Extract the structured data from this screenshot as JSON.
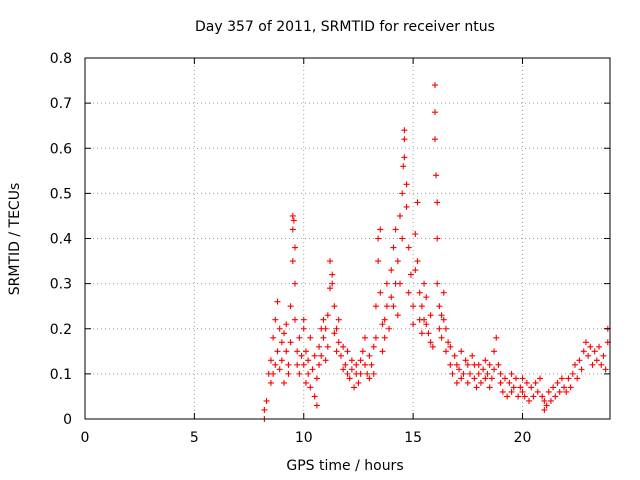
{
  "chart_data": {
    "type": "scatter",
    "title": "Day 357 of 2011, SRMTID for receiver ntus",
    "xlabel": "GPS time / hours",
    "ylabel": "SRMTID / TECUs",
    "xlim": [
      0,
      24
    ],
    "ylim": [
      0,
      0.8
    ],
    "x_ticks": [
      0,
      5,
      10,
      15,
      20
    ],
    "x_tick_labels": [
      "0",
      "5",
      "10",
      "15",
      "20"
    ],
    "y_ticks": [
      0,
      0.1,
      0.2,
      0.3,
      0.4,
      0.5,
      0.6,
      0.7,
      0.8
    ],
    "y_tick_labels": [
      "0",
      "0.1",
      "0.2",
      "0.3",
      "0.4",
      "0.5",
      "0.6",
      "0.7",
      "0.8"
    ],
    "grid": true,
    "marker": "+",
    "color": "#ff0000",
    "series": [
      {
        "name": "SRMTID",
        "points": [
          [
            8.2,
            0.0
          ],
          [
            8.2,
            0.02
          ],
          [
            8.3,
            0.04
          ],
          [
            8.4,
            0.1
          ],
          [
            8.5,
            0.08
          ],
          [
            8.5,
            0.13
          ],
          [
            8.6,
            0.1
          ],
          [
            8.6,
            0.18
          ],
          [
            8.7,
            0.12
          ],
          [
            8.7,
            0.22
          ],
          [
            8.8,
            0.26
          ],
          [
            8.8,
            0.15
          ],
          [
            8.9,
            0.2
          ],
          [
            8.9,
            0.11
          ],
          [
            9.0,
            0.17
          ],
          [
            9.0,
            0.13
          ],
          [
            9.1,
            0.19
          ],
          [
            9.1,
            0.08
          ],
          [
            9.2,
            0.15
          ],
          [
            9.2,
            0.21
          ],
          [
            9.3,
            0.12
          ],
          [
            9.3,
            0.1
          ],
          [
            9.4,
            0.17
          ],
          [
            9.4,
            0.25
          ],
          [
            9.5,
            0.35
          ],
          [
            9.5,
            0.42
          ],
          [
            9.5,
            0.45
          ],
          [
            9.55,
            0.44
          ],
          [
            9.6,
            0.38
          ],
          [
            9.6,
            0.3
          ],
          [
            9.6,
            0.22
          ],
          [
            9.7,
            0.15
          ],
          [
            9.7,
            0.12
          ],
          [
            9.8,
            0.18
          ],
          [
            9.8,
            0.1
          ],
          [
            9.9,
            0.14
          ],
          [
            10.0,
            0.2
          ],
          [
            10.0,
            0.22
          ],
          [
            10.0,
            0.12
          ],
          [
            10.1,
            0.15
          ],
          [
            10.1,
            0.08
          ],
          [
            10.2,
            0.13
          ],
          [
            10.2,
            0.1
          ],
          [
            10.3,
            0.18
          ],
          [
            10.3,
            0.07
          ],
          [
            10.4,
            0.11
          ],
          [
            10.5,
            0.05
          ],
          [
            10.5,
            0.14
          ],
          [
            10.6,
            0.03
          ],
          [
            10.6,
            0.09
          ],
          [
            10.7,
            0.16
          ],
          [
            10.7,
            0.12
          ],
          [
            10.8,
            0.2
          ],
          [
            10.8,
            0.14
          ],
          [
            10.9,
            0.22
          ],
          [
            10.9,
            0.18
          ],
          [
            11.0,
            0.2
          ],
          [
            11.0,
            0.13
          ],
          [
            11.1,
            0.23
          ],
          [
            11.1,
            0.16
          ],
          [
            11.2,
            0.29
          ],
          [
            11.2,
            0.35
          ],
          [
            11.3,
            0.32
          ],
          [
            11.3,
            0.3
          ],
          [
            11.4,
            0.25
          ],
          [
            11.4,
            0.19
          ],
          [
            11.5,
            0.2
          ],
          [
            11.5,
            0.15
          ],
          [
            11.6,
            0.22
          ],
          [
            11.6,
            0.17
          ],
          [
            11.7,
            0.14
          ],
          [
            11.8,
            0.11
          ],
          [
            11.8,
            0.16
          ],
          [
            11.9,
            0.12
          ],
          [
            12.0,
            0.1
          ],
          [
            12.0,
            0.15
          ],
          [
            12.1,
            0.09
          ],
          [
            12.2,
            0.13
          ],
          [
            12.2,
            0.11
          ],
          [
            12.3,
            0.07
          ],
          [
            12.4,
            0.1
          ],
          [
            12.4,
            0.12
          ],
          [
            12.5,
            0.08
          ],
          [
            12.6,
            0.13
          ],
          [
            12.6,
            0.1
          ],
          [
            12.7,
            0.15
          ],
          [
            12.8,
            0.12
          ],
          [
            12.8,
            0.18
          ],
          [
            12.9,
            0.1
          ],
          [
            13.0,
            0.14
          ],
          [
            13.0,
            0.09
          ],
          [
            13.1,
            0.12
          ],
          [
            13.2,
            0.1
          ],
          [
            13.2,
            0.16
          ],
          [
            13.3,
            0.18
          ],
          [
            13.3,
            0.25
          ],
          [
            13.4,
            0.35
          ],
          [
            13.4,
            0.4
          ],
          [
            13.5,
            0.42
          ],
          [
            13.5,
            0.28
          ],
          [
            13.6,
            0.21
          ],
          [
            13.6,
            0.15
          ],
          [
            13.7,
            0.18
          ],
          [
            13.7,
            0.22
          ],
          [
            13.8,
            0.25
          ],
          [
            13.8,
            0.3
          ],
          [
            13.9,
            0.2
          ],
          [
            14.0,
            0.27
          ],
          [
            14.0,
            0.33
          ],
          [
            14.1,
            0.38
          ],
          [
            14.1,
            0.25
          ],
          [
            14.2,
            0.3
          ],
          [
            14.2,
            0.42
          ],
          [
            14.3,
            0.35
          ],
          [
            14.3,
            0.23
          ],
          [
            14.4,
            0.3
          ],
          [
            14.4,
            0.45
          ],
          [
            14.5,
            0.5
          ],
          [
            14.5,
            0.4
          ],
          [
            14.55,
            0.56
          ],
          [
            14.6,
            0.62
          ],
          [
            14.6,
            0.64
          ],
          [
            14.6,
            0.58
          ],
          [
            14.7,
            0.52
          ],
          [
            14.7,
            0.47
          ],
          [
            14.8,
            0.38
          ],
          [
            14.8,
            0.28
          ],
          [
            14.9,
            0.32
          ],
          [
            15.0,
            0.25
          ],
          [
            15.0,
            0.21
          ],
          [
            15.1,
            0.33
          ],
          [
            15.1,
            0.41
          ],
          [
            15.2,
            0.48
          ],
          [
            15.2,
            0.35
          ],
          [
            15.3,
            0.28
          ],
          [
            15.3,
            0.22
          ],
          [
            15.4,
            0.25
          ],
          [
            15.4,
            0.19
          ],
          [
            15.5,
            0.22
          ],
          [
            15.5,
            0.3
          ],
          [
            15.6,
            0.27
          ],
          [
            15.6,
            0.21
          ],
          [
            15.7,
            0.19
          ],
          [
            15.8,
            0.17
          ],
          [
            15.8,
            0.23
          ],
          [
            15.9,
            0.16
          ],
          [
            16.0,
            0.74
          ],
          [
            16.0,
            0.68
          ],
          [
            16.0,
            0.62
          ],
          [
            16.05,
            0.54
          ],
          [
            16.1,
            0.48
          ],
          [
            16.1,
            0.4
          ],
          [
            16.1,
            0.3
          ],
          [
            16.2,
            0.25
          ],
          [
            16.2,
            0.2
          ],
          [
            16.3,
            0.23
          ],
          [
            16.3,
            0.18
          ],
          [
            16.4,
            0.22
          ],
          [
            16.4,
            0.28
          ],
          [
            16.5,
            0.2
          ],
          [
            16.5,
            0.15
          ],
          [
            16.6,
            0.17
          ],
          [
            16.7,
            0.12
          ],
          [
            16.7,
            0.16
          ],
          [
            16.8,
            0.1
          ],
          [
            16.9,
            0.14
          ],
          [
            17.0,
            0.12
          ],
          [
            17.0,
            0.08
          ],
          [
            17.1,
            0.11
          ],
          [
            17.2,
            0.09
          ],
          [
            17.2,
            0.15
          ],
          [
            17.3,
            0.1
          ],
          [
            17.4,
            0.13
          ],
          [
            17.5,
            0.08
          ],
          [
            17.5,
            0.12
          ],
          [
            17.6,
            0.1
          ],
          [
            17.7,
            0.14
          ],
          [
            17.8,
            0.09
          ],
          [
            17.8,
            0.12
          ],
          [
            17.9,
            0.07
          ],
          [
            18.0,
            0.1
          ],
          [
            18.0,
            0.12
          ],
          [
            18.1,
            0.08
          ],
          [
            18.2,
            0.11
          ],
          [
            18.3,
            0.09
          ],
          [
            18.3,
            0.13
          ],
          [
            18.4,
            0.1
          ],
          [
            18.5,
            0.07
          ],
          [
            18.5,
            0.12
          ],
          [
            18.6,
            0.09
          ],
          [
            18.7,
            0.11
          ],
          [
            18.7,
            0.15
          ],
          [
            18.8,
            0.18
          ],
          [
            18.9,
            0.12
          ],
          [
            19.0,
            0.1
          ],
          [
            19.0,
            0.08
          ],
          [
            19.1,
            0.06
          ],
          [
            19.2,
            0.09
          ],
          [
            19.3,
            0.05
          ],
          [
            19.4,
            0.08
          ],
          [
            19.5,
            0.06
          ],
          [
            19.5,
            0.1
          ],
          [
            19.6,
            0.07
          ],
          [
            19.7,
            0.09
          ],
          [
            19.8,
            0.05
          ],
          [
            19.9,
            0.07
          ],
          [
            20.0,
            0.06
          ],
          [
            20.0,
            0.09
          ],
          [
            20.1,
            0.05
          ],
          [
            20.2,
            0.08
          ],
          [
            20.3,
            0.04
          ],
          [
            20.4,
            0.07
          ],
          [
            20.5,
            0.05
          ],
          [
            20.6,
            0.08
          ],
          [
            20.7,
            0.06
          ],
          [
            20.8,
            0.09
          ],
          [
            20.9,
            0.05
          ],
          [
            21.0,
            0.02
          ],
          [
            21.0,
            0.04
          ],
          [
            21.1,
            0.03
          ],
          [
            21.2,
            0.06
          ],
          [
            21.3,
            0.04
          ],
          [
            21.4,
            0.07
          ],
          [
            21.5,
            0.05
          ],
          [
            21.6,
            0.08
          ],
          [
            21.7,
            0.06
          ],
          [
            21.8,
            0.09
          ],
          [
            21.9,
            0.07
          ],
          [
            22.0,
            0.06
          ],
          [
            22.1,
            0.09
          ],
          [
            22.2,
            0.07
          ],
          [
            22.3,
            0.1
          ],
          [
            22.4,
            0.12
          ],
          [
            22.5,
            0.09
          ],
          [
            22.6,
            0.13
          ],
          [
            22.7,
            0.11
          ],
          [
            22.8,
            0.15
          ],
          [
            22.9,
            0.17
          ],
          [
            23.0,
            0.14
          ],
          [
            23.1,
            0.16
          ],
          [
            23.2,
            0.12
          ],
          [
            23.3,
            0.15
          ],
          [
            23.4,
            0.13
          ],
          [
            23.5,
            0.16
          ],
          [
            23.6,
            0.12
          ],
          [
            23.7,
            0.14
          ],
          [
            23.8,
            0.11
          ],
          [
            23.9,
            0.17
          ],
          [
            23.9,
            0.2
          ]
        ]
      }
    ]
  }
}
